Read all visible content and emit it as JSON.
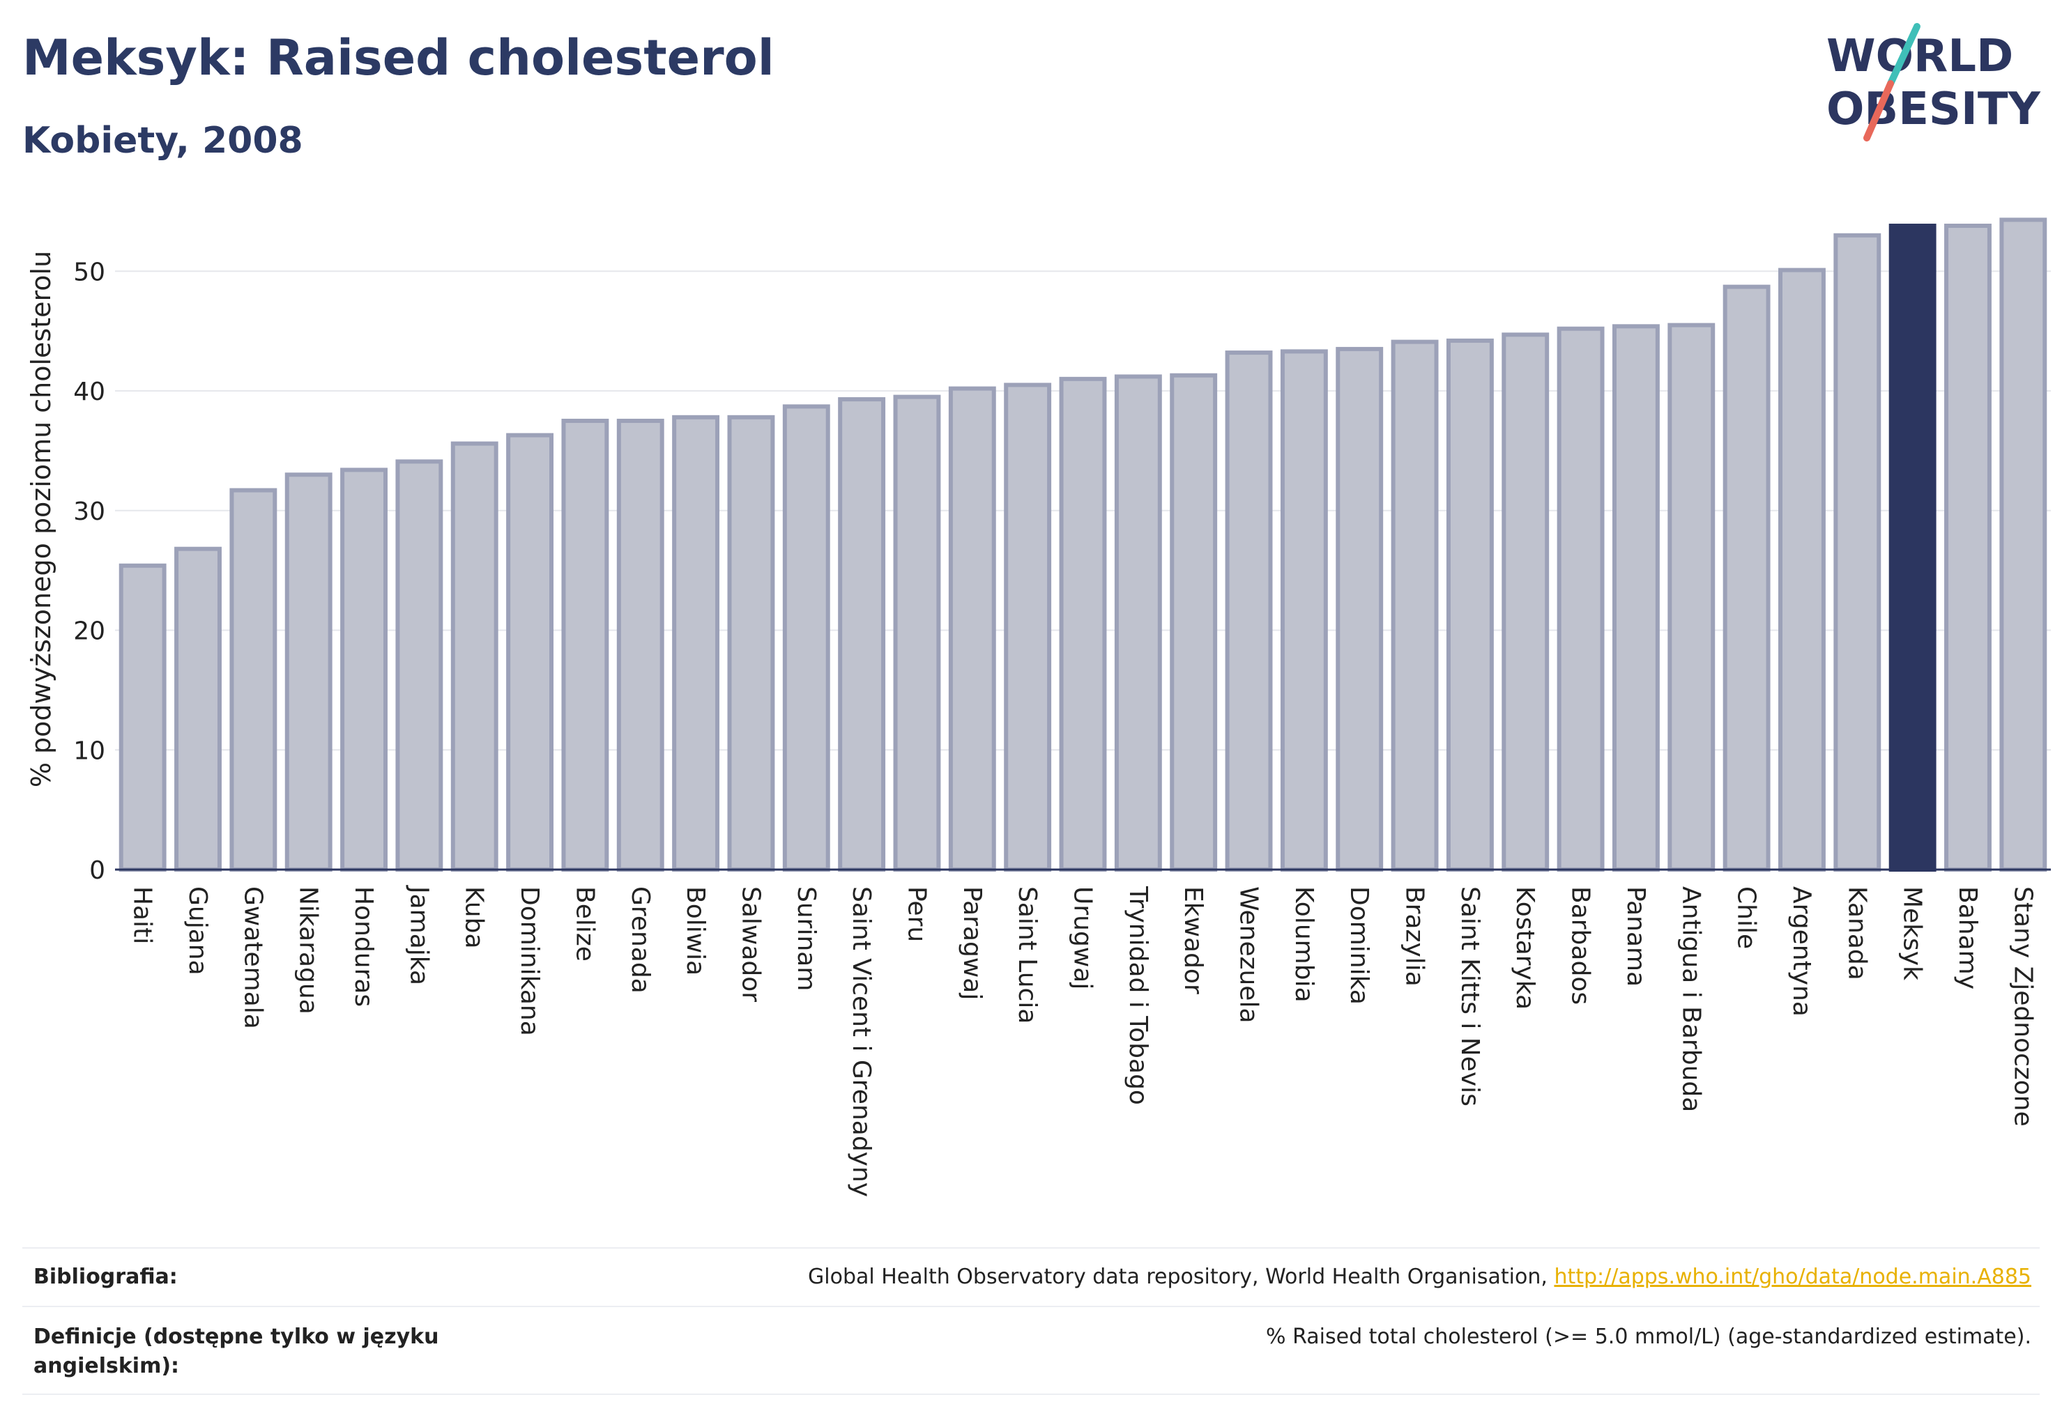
{
  "header": {
    "title": "Meksyk: Raised cholesterol",
    "subtitle": "Kobiety, 2008",
    "logo_line1": "WORLD",
    "logo_line2": "OBESITY"
  },
  "chart_data": {
    "type": "bar",
    "ylabel": "% podwyższonego poziomu cholesterolu",
    "xlabel": "",
    "ylim": [
      0,
      54.5
    ],
    "yticks": [
      0,
      10,
      20,
      30,
      40,
      50
    ],
    "grid": true,
    "highlight": "Meksyk",
    "colors": {
      "bar": "#bfc2ce",
      "bar_edge": "#9ca1b8",
      "highlight": "#2c3660",
      "grid": "#e6e7ec",
      "axis": "#2c3660"
    },
    "categories": [
      "Haiti",
      "Gujana",
      "Gwatemala",
      "Nikaragua",
      "Honduras",
      "Jamajka",
      "Kuba",
      "Dominikana",
      "Belize",
      "Grenada",
      "Boliwia",
      "Salwador",
      "Surinam",
      "Saint Vicent i Grenadyny",
      "Peru",
      "Paragwaj",
      "Saint Lucia",
      "Urugwaj",
      "Trynidad i Tobago",
      "Ekwador",
      "Wenezuela",
      "Kolumbia",
      "Dominika",
      "Brazylia",
      "Saint Kitts i Nevis",
      "Kostaryka",
      "Barbados",
      "Panama",
      "Antigua i Barbuda",
      "Chile",
      "Argentyna",
      "Kanada",
      "Meksyk",
      "Bahamy",
      "Stany Zjednoczone"
    ],
    "values": [
      25.4,
      26.8,
      31.7,
      33.0,
      33.4,
      34.1,
      35.6,
      36.3,
      37.5,
      37.5,
      37.8,
      37.8,
      38.7,
      39.3,
      39.5,
      40.2,
      40.5,
      41.0,
      41.2,
      41.3,
      43.2,
      43.3,
      43.5,
      44.1,
      44.2,
      44.7,
      45.2,
      45.4,
      45.5,
      48.7,
      50.1,
      53.0,
      53.8,
      53.8,
      54.3
    ]
  },
  "footer": {
    "bibliography_label": "Bibliografia:",
    "bibliography_text": "Global Health Observatory data repository, World Health Organisation, ",
    "bibliography_link": "http://apps.who.int/gho/data/node.main.A885",
    "definitions_label": "Definicje (dostępne tylko w języku angielskim):",
    "definitions_text": "% Raised total cholesterol (>= 5.0 mmol/L) (age-standardized estimate)."
  }
}
